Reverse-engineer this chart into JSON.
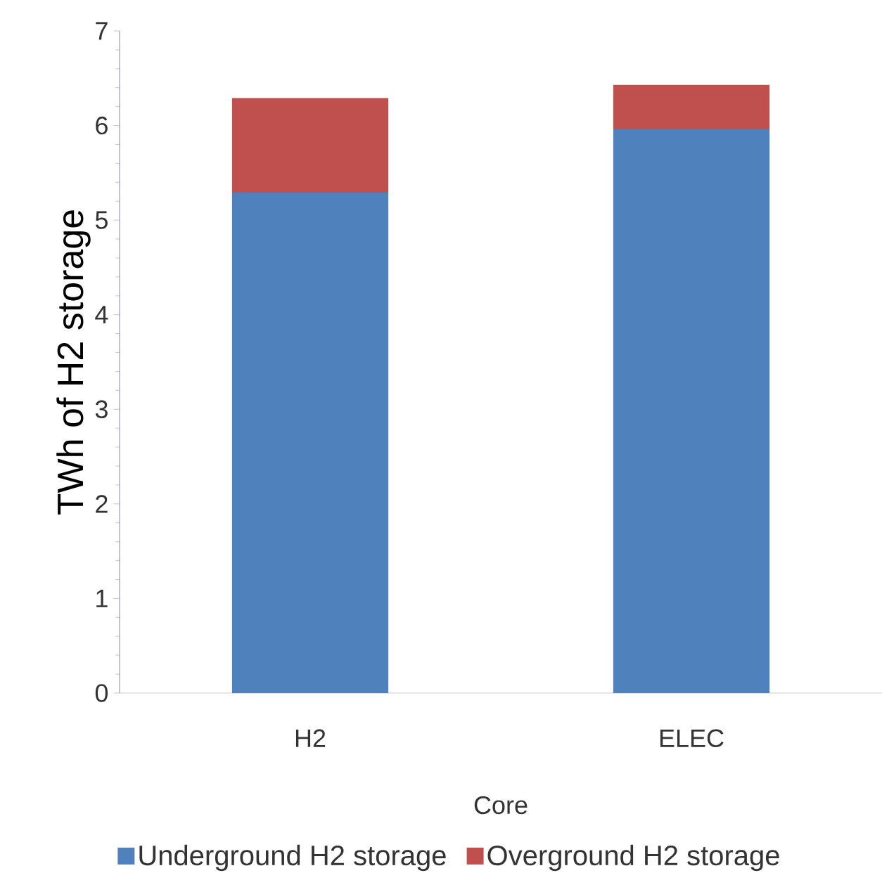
{
  "chart_data": {
    "type": "bar",
    "stacked": true,
    "xlabel": "Core",
    "ylabel": "TWh of H2 storage",
    "categories": [
      "H2",
      "ELEC"
    ],
    "series": [
      {
        "name": "Underground H2 storage",
        "color": "#4f81bd",
        "values": [
          5.29,
          5.96
        ]
      },
      {
        "name": "Overground H2 storage",
        "color": "#c0504d",
        "values": [
          1.0,
          0.47
        ]
      }
    ],
    "ylim": [
      0,
      7
    ],
    "yticks": [
      0,
      1,
      2,
      3,
      4,
      5,
      6,
      7
    ],
    "grid": false,
    "legend": "bottom"
  }
}
